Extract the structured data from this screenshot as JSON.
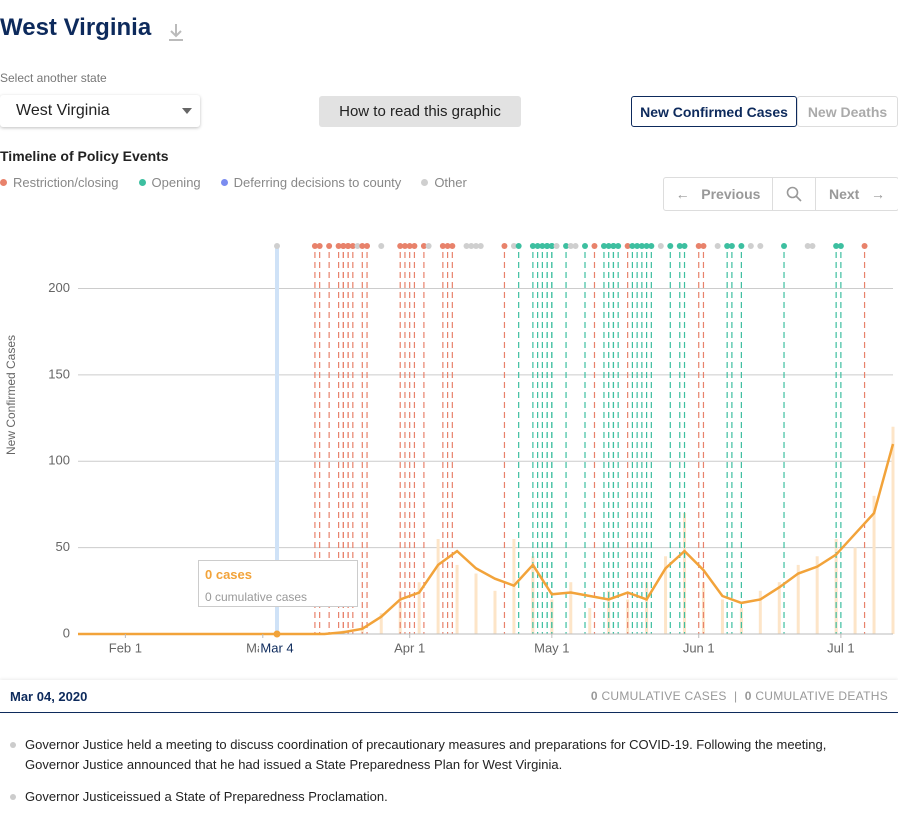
{
  "header": {
    "title": "West Virginia",
    "select_label": "Select another state",
    "selected_state": "West Virginia",
    "help_button": "How to read this graphic",
    "tabs": [
      "New Confirmed Cases",
      "New Deaths"
    ]
  },
  "timeline": {
    "title": "Timeline of Policy Events",
    "categories": [
      {
        "name": "Restriction/closing",
        "color": "#e8826b"
      },
      {
        "name": "Opening",
        "color": "#3dbfa0"
      },
      {
        "name": "Deferring decisions to county",
        "color": "#7b8cf0"
      },
      {
        "name": "Other",
        "color": "#cfcfcf"
      }
    ],
    "previous": "Previous",
    "next": "Next"
  },
  "chart_data": {
    "type": "line",
    "ylabel": "New Confirmed Cases",
    "x": [
      "2020-01-22",
      "2020-01-26",
      "2020-01-30",
      "2020-02-03",
      "2020-02-07",
      "2020-02-11",
      "2020-02-15",
      "2020-02-19",
      "2020-02-23",
      "2020-02-27",
      "2020-03-02",
      "2020-03-06",
      "2020-03-10",
      "2020-03-14",
      "2020-03-18",
      "2020-03-22",
      "2020-03-26",
      "2020-03-30",
      "2020-04-03",
      "2020-04-07",
      "2020-04-11",
      "2020-04-15",
      "2020-04-19",
      "2020-04-23",
      "2020-04-27",
      "2020-05-01",
      "2020-05-05",
      "2020-05-09",
      "2020-05-13",
      "2020-05-17",
      "2020-05-21",
      "2020-05-25",
      "2020-05-29",
      "2020-06-02",
      "2020-06-06",
      "2020-06-10",
      "2020-06-14",
      "2020-06-18",
      "2020-06-22",
      "2020-06-26",
      "2020-06-30",
      "2020-07-04",
      "2020-07-08",
      "2020-07-12"
    ],
    "series": [
      {
        "color": "#f2a33a",
        "values": [
          0,
          0,
          0,
          0,
          0,
          0,
          0,
          0,
          0,
          0,
          0,
          0,
          0,
          0,
          1,
          3,
          10,
          20,
          24,
          40,
          48,
          38,
          32,
          28,
          40,
          23,
          24,
          22,
          20,
          24,
          20,
          38,
          48,
          37,
          22,
          18,
          20,
          27,
          35,
          39,
          46,
          58,
          70,
          110
        ]
      }
    ],
    "bars": {
      "color": "#fde5c8",
      "values": [
        0,
        0,
        0,
        0,
        0,
        0,
        0,
        0,
        0,
        0,
        0,
        0,
        0,
        0,
        2,
        5,
        12,
        25,
        30,
        55,
        40,
        35,
        25,
        55,
        45,
        20,
        30,
        15,
        25,
        20,
        30,
        45,
        70,
        30,
        20,
        15,
        25,
        30,
        40,
        45,
        55,
        50,
        80,
        120
      ]
    },
    "xlim": [
      "2020-01-22",
      "2020-07-12"
    ],
    "xticks": [
      {
        "value": "2020-02-01",
        "label": "Feb 1"
      },
      {
        "value": "2020-03-01",
        "label": "Mar 1"
      },
      {
        "value": "2020-04-01",
        "label": "Apr 1"
      },
      {
        "value": "2020-05-01",
        "label": "May 1"
      },
      {
        "value": "2020-06-01",
        "label": "Jun 1"
      },
      {
        "value": "2020-07-01",
        "label": "Jul 1"
      }
    ],
    "ylim": [
      0,
      220
    ],
    "yticks": [
      0,
      50,
      100,
      150,
      200
    ],
    "grid": true,
    "highlight": {
      "value": "2020-03-04",
      "label": "Mar 4"
    },
    "tooltip": {
      "title": "0 cases",
      "subtitle": "0 cumulative cases"
    },
    "events": [
      {
        "date": "2020-03-04",
        "category": 3
      },
      {
        "date": "2020-03-12",
        "category": 0
      },
      {
        "date": "2020-03-13",
        "category": 0
      },
      {
        "date": "2020-03-15",
        "category": 0
      },
      {
        "date": "2020-03-17",
        "category": 0
      },
      {
        "date": "2020-03-18",
        "category": 0
      },
      {
        "date": "2020-03-18",
        "category": 0
      },
      {
        "date": "2020-03-19",
        "category": 0
      },
      {
        "date": "2020-03-19",
        "category": 0
      },
      {
        "date": "2020-03-20",
        "category": 0
      },
      {
        "date": "2020-03-21",
        "category": 3
      },
      {
        "date": "2020-03-22",
        "category": 0
      },
      {
        "date": "2020-03-23",
        "category": 0
      },
      {
        "date": "2020-03-26",
        "category": 3
      },
      {
        "date": "2020-03-30",
        "category": 0
      },
      {
        "date": "2020-03-31",
        "category": 0
      },
      {
        "date": "2020-04-01",
        "category": 0
      },
      {
        "date": "2020-04-02",
        "category": 0
      },
      {
        "date": "2020-04-04",
        "category": 0
      },
      {
        "date": "2020-04-05",
        "category": 3
      },
      {
        "date": "2020-04-08",
        "category": 0
      },
      {
        "date": "2020-04-09",
        "category": 0
      },
      {
        "date": "2020-04-10",
        "category": 0
      },
      {
        "date": "2020-04-13",
        "category": 3
      },
      {
        "date": "2020-04-14",
        "category": 3
      },
      {
        "date": "2020-04-15",
        "category": 3
      },
      {
        "date": "2020-04-16",
        "category": 3
      },
      {
        "date": "2020-04-21",
        "category": 0
      },
      {
        "date": "2020-04-23",
        "category": 3
      },
      {
        "date": "2020-04-24",
        "category": 1
      },
      {
        "date": "2020-04-27",
        "category": 1
      },
      {
        "date": "2020-04-28",
        "category": 1
      },
      {
        "date": "2020-04-29",
        "category": 1
      },
      {
        "date": "2020-04-30",
        "category": 1
      },
      {
        "date": "2020-04-30",
        "category": 1
      },
      {
        "date": "2020-05-01",
        "category": 1
      },
      {
        "date": "2020-05-01",
        "category": 1
      },
      {
        "date": "2020-05-02",
        "category": 3
      },
      {
        "date": "2020-05-04",
        "category": 1
      },
      {
        "date": "2020-05-05",
        "category": 3
      },
      {
        "date": "2020-05-06",
        "category": 3
      },
      {
        "date": "2020-05-08",
        "category": 1
      },
      {
        "date": "2020-05-10",
        "category": 0
      },
      {
        "date": "2020-05-12",
        "category": 1
      },
      {
        "date": "2020-05-13",
        "category": 1
      },
      {
        "date": "2020-05-14",
        "category": 1
      },
      {
        "date": "2020-05-14",
        "category": 1
      },
      {
        "date": "2020-05-15",
        "category": 1
      },
      {
        "date": "2020-05-17",
        "category": 0
      },
      {
        "date": "2020-05-18",
        "category": 1
      },
      {
        "date": "2020-05-19",
        "category": 1
      },
      {
        "date": "2020-05-20",
        "category": 1
      },
      {
        "date": "2020-05-21",
        "category": 1
      },
      {
        "date": "2020-05-22",
        "category": 1
      },
      {
        "date": "2020-05-24",
        "category": 3
      },
      {
        "date": "2020-05-26",
        "category": 1
      },
      {
        "date": "2020-05-28",
        "category": 1
      },
      {
        "date": "2020-05-29",
        "category": 1
      },
      {
        "date": "2020-06-01",
        "category": 0
      },
      {
        "date": "2020-06-02",
        "category": 0
      },
      {
        "date": "2020-06-05",
        "category": 3
      },
      {
        "date": "2020-06-07",
        "category": 1
      },
      {
        "date": "2020-06-08",
        "category": 1
      },
      {
        "date": "2020-06-10",
        "category": 1
      },
      {
        "date": "2020-06-12",
        "category": 3
      },
      {
        "date": "2020-06-14",
        "category": 3
      },
      {
        "date": "2020-06-19",
        "category": 1
      },
      {
        "date": "2020-06-24",
        "category": 3
      },
      {
        "date": "2020-06-25",
        "category": 3
      },
      {
        "date": "2020-06-30",
        "category": 1
      },
      {
        "date": "2020-07-01",
        "category": 1
      },
      {
        "date": "2020-07-06",
        "category": 0
      }
    ]
  },
  "details": {
    "date": "Mar 04, 2020",
    "cases": "0",
    "cases_label": "CUMULATIVE CASES",
    "separator": "|",
    "deaths": "0",
    "deaths_label": "CUMULATIVE DEATHS",
    "events": [
      "Governor Justice held a meeting to discuss coordination of precautionary measures and preparations for COVID-19. Following the meeting, Governor Justice announced that he had issued a State Preparedness Plan for West Virginia.",
      "Governor Justiceissued a State of Preparedness Proclamation."
    ]
  }
}
